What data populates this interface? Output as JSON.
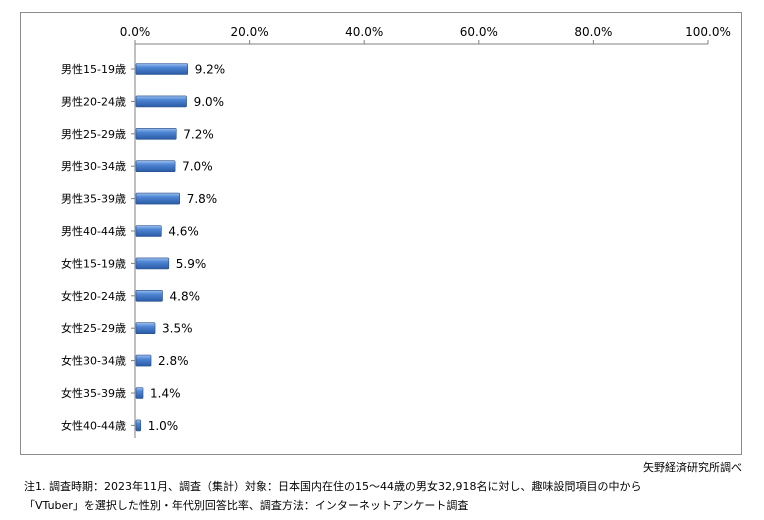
{
  "chart_data": {
    "type": "bar",
    "orientation": "horizontal",
    "categories": [
      "男性15-19歳",
      "男性20-24歳",
      "男性25-29歳",
      "男性30-34歳",
      "男性35-39歳",
      "男性40-44歳",
      "女性15-19歳",
      "女性20-24歳",
      "女性25-29歳",
      "女性30-34歳",
      "女性35-39歳",
      "女性40-44歳"
    ],
    "values": [
      9.2,
      9.0,
      7.2,
      7.0,
      7.8,
      4.6,
      5.9,
      4.8,
      3.5,
      2.8,
      1.4,
      1.0
    ],
    "value_labels": [
      "9.2%",
      "9.0%",
      "7.2%",
      "7.0%",
      "7.8%",
      "4.6%",
      "5.9%",
      "4.8%",
      "3.5%",
      "2.8%",
      "1.4%",
      "1.0%"
    ],
    "xlim": [
      0,
      100
    ],
    "x_ticks": [
      0,
      20,
      40,
      60,
      80,
      100
    ],
    "x_tick_labels": [
      "0.0%",
      "20.0%",
      "40.0%",
      "60.0%",
      "80.0%",
      "100.0%"
    ],
    "x_axis_position": "top",
    "grid": false,
    "bar_color": "#3f74c4"
  },
  "source": "矢野経済研究所調べ",
  "notes": [
    "注1. 調査時期：2023年11月、調査（集計）対象：日本国内在住の15～44歳の男女32,918名に対し、趣味設問項目の中から",
    "「VTuber」を選択した性別・年代別回答比率、調査方法：インターネットアンケート調査"
  ]
}
